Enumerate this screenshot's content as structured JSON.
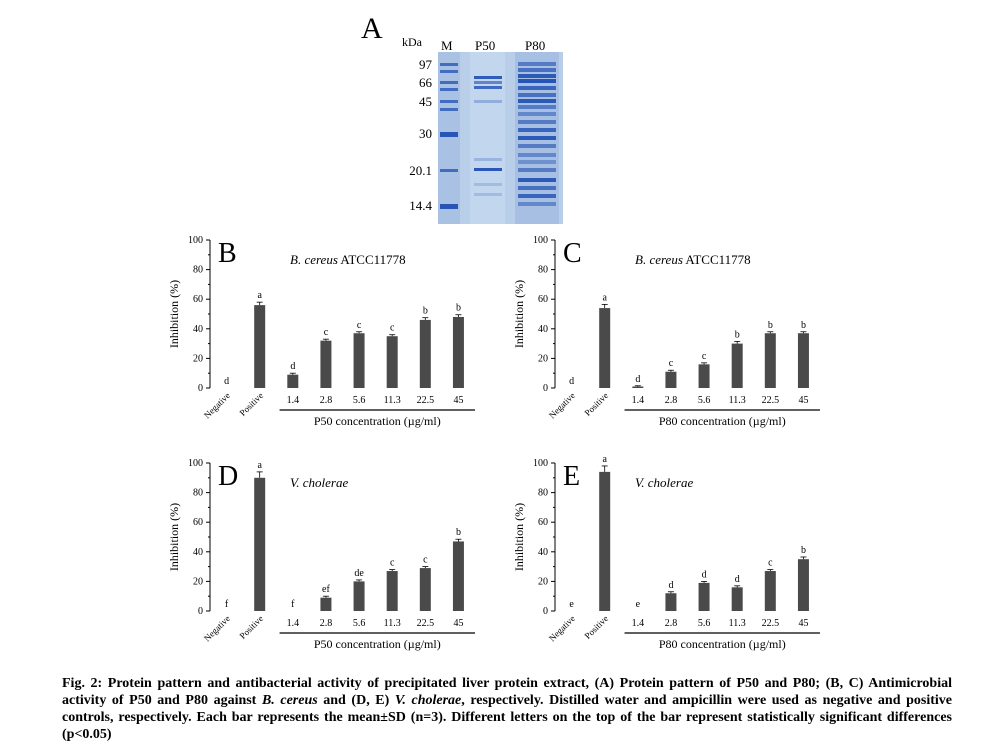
{
  "gel": {
    "letter": "A",
    "unit": "kDa",
    "lanes": [
      "M",
      "P50",
      "P80"
    ],
    "markers": [
      "97",
      "66",
      "45",
      "30",
      "20.1",
      "14.4"
    ]
  },
  "charts": {
    "B": {
      "letter": "B",
      "organism_italic": "B. cereus",
      "organism_rest": " ATCC11778",
      "ylabel": "Inhibition (%)",
      "xlabel": "P50 concentration (µg/ml)"
    },
    "C": {
      "letter": "C",
      "organism_italic": "B. cereus",
      "organism_rest": " ATCC11778",
      "ylabel": "Inhibition (%)",
      "xlabel": "P80 concentration (µg/ml)"
    },
    "D": {
      "letter": "D",
      "organism_italic": "V. cholerae",
      "organism_rest": "",
      "ylabel": "Inhibition (%)",
      "xlabel": "P50 concentration (µg/ml)"
    },
    "E": {
      "letter": "E",
      "organism_italic": "V. cholerae",
      "organism_rest": "",
      "ylabel": "Inhibition (%)",
      "xlabel": "P80 concentration (µg/ml)"
    }
  },
  "caption": {
    "part1": "Fig. 2: Protein pattern and antibacterial activity of precipitated liver protein extract, (A) Protein pattern of P50 and P80; (B, C) Antimicrobial activity of P50 and P80 against ",
    "italic1": "B. cereus",
    "part2": " and (D, E) ",
    "italic2": "V. cholerae",
    "part3": ", respectively. Distilled water and ampicillin were used as negative and positive controls, respectively. Each bar represents the mean±SD (n=3). Different letters on the top of the bar represent statistically significant differences (p<0.05)"
  },
  "chart_data": [
    {
      "id": "B",
      "type": "bar",
      "categories": [
        "Negative",
        "Positive",
        "1.4",
        "2.8",
        "5.6",
        "11.3",
        "22.5",
        "45"
      ],
      "values": [
        0,
        56,
        9,
        32,
        37,
        35,
        46,
        48
      ],
      "errors": [
        0,
        2,
        1,
        1,
        1,
        1,
        1.5,
        1.5
      ],
      "letters": [
        "d",
        "a",
        "d",
        "c",
        "c",
        "c",
        "b",
        "b"
      ],
      "ylim": [
        0,
        100
      ],
      "yticks": [
        0,
        20,
        40,
        60,
        80,
        100
      ]
    },
    {
      "id": "C",
      "type": "bar",
      "categories": [
        "Negative",
        "Positive",
        "1.4",
        "2.8",
        "5.6",
        "11.3",
        "22.5",
        "45"
      ],
      "values": [
        0,
        54,
        1,
        11,
        16,
        30,
        37,
        37
      ],
      "errors": [
        0,
        2.5,
        0.5,
        1,
        1,
        1.5,
        1,
        1
      ],
      "letters": [
        "d",
        "a",
        "d",
        "c",
        "c",
        "b",
        "b",
        "b"
      ],
      "ylim": [
        0,
        100
      ],
      "yticks": [
        0,
        20,
        40,
        60,
        80,
        100
      ]
    },
    {
      "id": "D",
      "type": "bar",
      "categories": [
        "Negative",
        "Positive",
        "1.4",
        "2.8",
        "5.6",
        "11.3",
        "22.5",
        "45"
      ],
      "values": [
        0,
        90,
        0,
        9,
        20,
        27,
        29,
        47
      ],
      "errors": [
        0,
        4,
        0,
        1,
        1,
        1,
        1,
        1.5
      ],
      "letters": [
        "f",
        "a",
        "f",
        "ef",
        "de",
        "c",
        "c",
        "b"
      ],
      "ylim": [
        0,
        100
      ],
      "yticks": [
        0,
        20,
        40,
        60,
        80,
        100
      ]
    },
    {
      "id": "E",
      "type": "bar",
      "categories": [
        "Negative",
        "Positive",
        "1.4",
        "2.8",
        "5.6",
        "11.3",
        "22.5",
        "45"
      ],
      "values": [
        0,
        94,
        0,
        12,
        19,
        16,
        27,
        35
      ],
      "errors": [
        0,
        4,
        0,
        1,
        1,
        1,
        1,
        1.5
      ],
      "letters": [
        "e",
        "a",
        "e",
        "d",
        "d",
        "d",
        "c",
        "b"
      ],
      "ylim": [
        0,
        100
      ],
      "yticks": [
        0,
        20,
        40,
        60,
        80,
        100
      ]
    }
  ],
  "colors": {
    "bar": "#4a4a4a",
    "gel_bg": "#b9cfe9",
    "band": "#1f4fb3"
  }
}
